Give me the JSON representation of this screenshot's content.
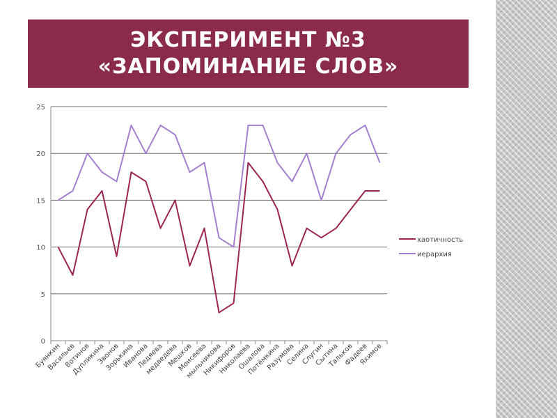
{
  "slide": {
    "title_line1": "ЭКСПЕРИМЕНТ №3",
    "title_line2": "«ЗАПОМИНАНИЕ СЛОВ»"
  },
  "colors": {
    "title_band": "#8b2b4b",
    "series_chaos": "#9b2450",
    "series_hierarchy": "#a47fd0"
  },
  "chart_data": {
    "type": "line",
    "categories": [
      "Буянкин",
      "Васильев",
      "Вотинов",
      "Дупликина",
      "Звонов",
      "Зорькина",
      "Иванова",
      "Ледяева",
      "медведева",
      "Мешков",
      "Моисеева",
      "мыльникова",
      "Никифоров",
      "Николаева",
      "Ошалова",
      "Потёмкина",
      "Разумова",
      "Селина",
      "Слугин",
      "Сытина",
      "Тальков",
      "Фадеев",
      "Яхимов"
    ],
    "series": [
      {
        "name": "хаотичность",
        "values": [
          10,
          7,
          14,
          16,
          9,
          18,
          17,
          12,
          15,
          8,
          12,
          3,
          4,
          19,
          17,
          14,
          8,
          12,
          11,
          12,
          14,
          16,
          16
        ]
      },
      {
        "name": "иерархия",
        "values": [
          15,
          16,
          20,
          18,
          17,
          23,
          20,
          23,
          22,
          18,
          19,
          11,
          10,
          23,
          23,
          19,
          17,
          20,
          15,
          20,
          22,
          23,
          19
        ]
      }
    ],
    "y_ticks": [
      "0",
      "5",
      "10",
      "15",
      "20",
      "25"
    ],
    "ylim": [
      0,
      25
    ],
    "grid": true,
    "legend": "right"
  }
}
